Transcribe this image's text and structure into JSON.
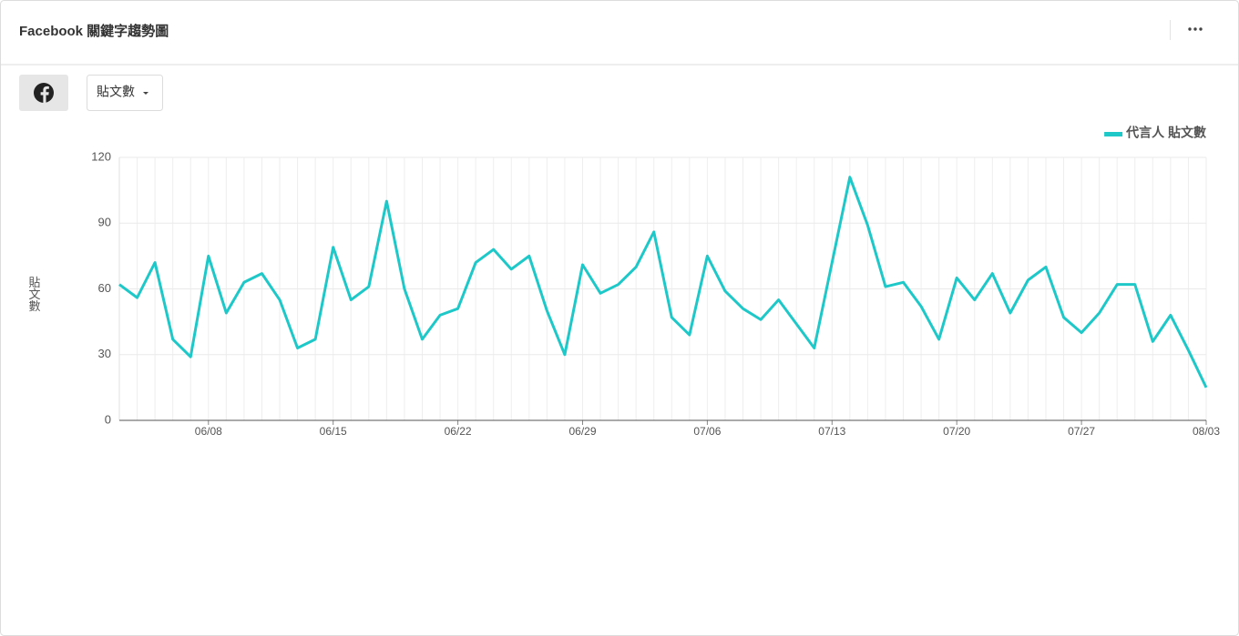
{
  "header": {
    "title": "Facebook 關鍵字趨勢圖"
  },
  "controls": {
    "metric": "貼文數"
  },
  "chart_data": {
    "type": "line",
    "y_label": "貼文數",
    "categories": [
      null,
      null,
      null,
      null,
      null,
      "06/08",
      null,
      null,
      null,
      null,
      null,
      null,
      "06/15",
      null,
      null,
      null,
      null,
      null,
      null,
      "06/22",
      null,
      null,
      null,
      null,
      null,
      null,
      "06/29",
      null,
      null,
      null,
      null,
      null,
      null,
      "07/06",
      null,
      null,
      null,
      null,
      null,
      null,
      "07/13",
      null,
      null,
      null,
      null,
      null,
      null,
      "07/20",
      null,
      null,
      null,
      null,
      null,
      null,
      "07/27",
      null,
      null,
      null,
      null,
      null,
      null,
      "08/03"
    ],
    "series": [
      {
        "name": "代言人 貼文數",
        "color": "#1fc8c8",
        "values": [
          62,
          56,
          72,
          37,
          29,
          75,
          49,
          63,
          67,
          55,
          33,
          37,
          79,
          55,
          61,
          100,
          60,
          37,
          48,
          51,
          72,
          78,
          69,
          75,
          50,
          30,
          71,
          58,
          62,
          70,
          86,
          47,
          39,
          75,
          59,
          51,
          46,
          55,
          44,
          33,
          72,
          111,
          89,
          61,
          63,
          52,
          37,
          65,
          55,
          67,
          49,
          64,
          70,
          47,
          40,
          49,
          62,
          62,
          36,
          48,
          32,
          15
        ]
      }
    ],
    "ylim": [
      0,
      120
    ],
    "yticks": [
      0,
      30,
      60,
      90,
      120
    ],
    "grid": true,
    "legend": "top-right"
  }
}
